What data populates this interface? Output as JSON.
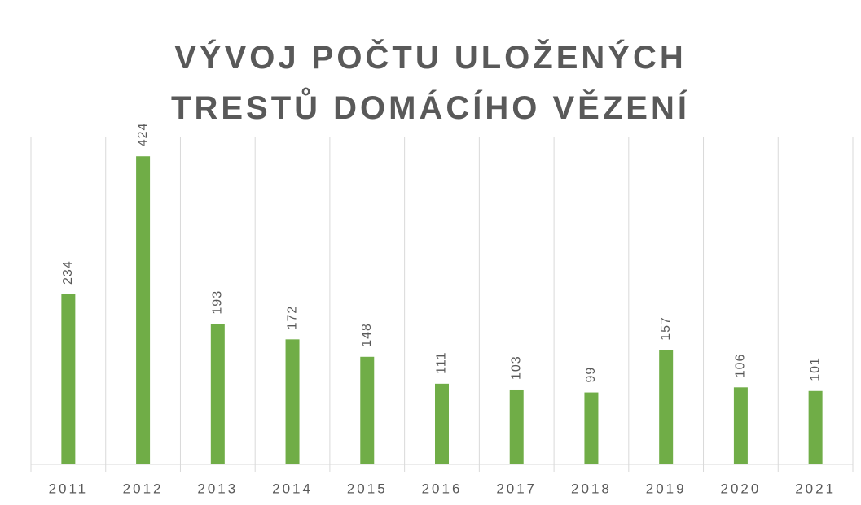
{
  "chart_data": {
    "type": "bar",
    "title": "VÝVOJ POČTU ULOŽENÝCH TRESTŮ DOMÁCÍHO VĚZENÍ",
    "categories": [
      "2011",
      "2012",
      "2013",
      "2014",
      "2015",
      "2016",
      "2017",
      "2018",
      "2019",
      "2020",
      "2021"
    ],
    "values": [
      234,
      424,
      193,
      172,
      148,
      111,
      103,
      99,
      157,
      106,
      101
    ],
    "color": "#70ad47",
    "ylim": [
      0,
      450
    ],
    "grid": true
  }
}
